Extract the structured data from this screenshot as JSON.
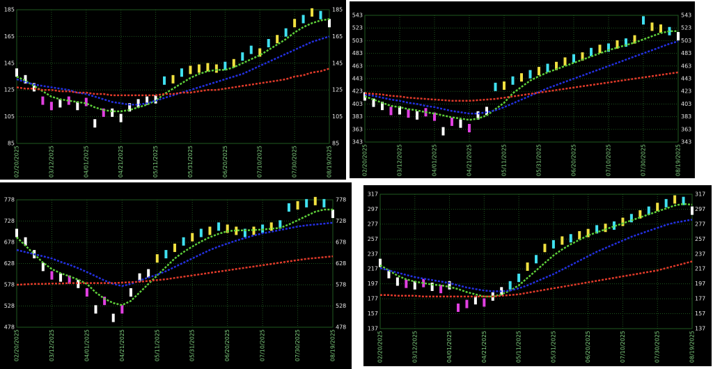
{
  "chart_data": [
    {
      "type": "price",
      "categories": [
        "02/20/2025",
        null,
        null,
        null,
        "03/12/2025",
        null,
        null,
        null,
        "04/01/2025",
        null,
        null,
        null,
        "04/21/2025",
        null,
        null,
        null,
        "05/11/2025",
        null,
        null,
        null,
        "05/31/2025",
        null,
        null,
        null,
        "06/20/2025",
        null,
        null,
        null,
        "07/10/2025",
        null,
        null,
        null,
        "07/30/2025",
        null,
        null,
        null,
        "08/19/2025"
      ],
      "ylim": [
        85,
        185
      ],
      "yticks": [
        85,
        105,
        125,
        145,
        165,
        185
      ],
      "grid": true,
      "series": [
        {
          "style": "bars",
          "color": "#ffffff",
          "values": [
            138,
            133,
            127,
            117,
            113,
            115,
            117,
            113,
            116,
            100,
            108,
            108,
            104,
            112,
            115,
            117,
            118,
            132,
            133,
            138,
            140,
            141,
            142,
            141,
            143,
            145,
            150,
            155,
            153,
            160,
            163,
            168,
            175,
            178,
            183,
            181,
            175
          ],
          "point_colors": [
            "#ffffff",
            "#ffffff",
            "#ffffff",
            "#e040e0",
            "#e040e0",
            "#ffffff",
            "#e040e0",
            "#ffffff",
            "#e040e0",
            "#ffffff",
            "#e040e0",
            "#ffffff",
            "#ffffff",
            "#ffffff",
            "#ffffff",
            "#ffffff",
            "#ffffff",
            "#40e0f0",
            "#f0e040",
            "#40e0f0",
            "#f0e040",
            "#f0e040",
            "#f0e040",
            "#f0e040",
            "#40e0f0",
            "#f0e040",
            "#40e0f0",
            "#40e0f0",
            "#f0e040",
            "#40e0f0",
            "#f0e040",
            "#40e0f0",
            "#f0e040",
            "#40e0f0",
            "#f0e040",
            "#40e0f0",
            "#ffffff"
          ]
        },
        {
          "style": "dotted",
          "color": "#5ed03a",
          "values": [
            135,
            132,
            128,
            124,
            120,
            118,
            117,
            116,
            115,
            112,
            110,
            109,
            109,
            110,
            112,
            114,
            117,
            122,
            126,
            130,
            134,
            137,
            139,
            140,
            140,
            142,
            145,
            148,
            151,
            155,
            159,
            163,
            168,
            172,
            175,
            177,
            178
          ]
        },
        {
          "style": "dotted",
          "color": "#2430e0",
          "values": [
            133,
            131,
            129,
            128,
            127,
            126,
            125,
            123,
            122,
            120,
            118,
            116,
            115,
            114,
            114,
            115,
            117,
            119,
            121,
            123,
            125,
            127,
            129,
            131,
            133,
            135,
            137,
            140,
            143,
            146,
            149,
            152,
            155,
            158,
            161,
            163,
            165
          ]
        },
        {
          "style": "dotted",
          "color": "#e03a2a",
          "values": [
            127,
            126,
            126,
            125,
            125,
            124,
            124,
            123,
            123,
            122,
            122,
            121,
            121,
            121,
            121,
            121,
            121,
            122,
            122,
            123,
            123,
            124,
            125,
            125,
            126,
            127,
            128,
            129,
            130,
            131,
            132,
            133,
            135,
            136,
            138,
            139,
            141
          ]
        }
      ]
    },
    {
      "type": "price",
      "categories": [
        "02/20/2025",
        null,
        null,
        null,
        "03/12/2025",
        null,
        null,
        null,
        "04/01/2025",
        null,
        null,
        null,
        "04/21/2025",
        null,
        null,
        null,
        "05/11/2025",
        null,
        null,
        null,
        "05/31/2025",
        null,
        null,
        null,
        "06/20/2025",
        null,
        null,
        null,
        "07/10/2025",
        null,
        null,
        null,
        "07/30/2025",
        null,
        null,
        null,
        "08/19/2025"
      ],
      "ylim": [
        343,
        543
      ],
      "yticks": [
        343,
        363,
        383,
        403,
        423,
        443,
        463,
        483,
        503,
        523,
        543
      ],
      "grid": true,
      "series": [
        {
          "style": "bars",
          "color": "#ffffff",
          "values": [
            415,
            405,
            400,
            392,
            393,
            388,
            385,
            390,
            383,
            360,
            375,
            372,
            365,
            385,
            392,
            430,
            432,
            440,
            445,
            450,
            455,
            460,
            463,
            470,
            475,
            478,
            485,
            490,
            492,
            497,
            500,
            505,
            535,
            525,
            522,
            518,
            510
          ],
          "point_colors": [
            "#ffffff",
            "#ffffff",
            "#ffffff",
            "#e040e0",
            "#ffffff",
            "#e040e0",
            "#ffffff",
            "#e040e0",
            "#e040e0",
            "#ffffff",
            "#e040e0",
            "#ffffff",
            "#e040e0",
            "#ffffff",
            "#ffffff",
            "#40e0f0",
            "#f0e040",
            "#40e0f0",
            "#f0e040",
            "#40e0f0",
            "#f0e040",
            "#40e0f0",
            "#f0e040",
            "#f0e040",
            "#40e0f0",
            "#f0e040",
            "#40e0f0",
            "#f0e040",
            "#40e0f0",
            "#f0e040",
            "#40e0f0",
            "#f0e040",
            "#40e0f0",
            "#f0e040",
            "#f0e040",
            "#40e0f0",
            "#ffffff"
          ]
        },
        {
          "style": "dotted",
          "color": "#5ed03a",
          "values": [
            415,
            410,
            405,
            400,
            398,
            395,
            393,
            390,
            388,
            385,
            382,
            380,
            378,
            380,
            385,
            395,
            405,
            420,
            430,
            440,
            447,
            453,
            458,
            463,
            468,
            473,
            478,
            483,
            488,
            492,
            496,
            500,
            505,
            510,
            515,
            518,
            518
          ]
        },
        {
          "style": "dotted",
          "color": "#2430e0",
          "values": [
            418,
            416,
            413,
            410,
            408,
            405,
            403,
            400,
            398,
            395,
            392,
            390,
            388,
            388,
            390,
            393,
            398,
            404,
            410,
            416,
            422,
            428,
            433,
            438,
            443,
            448,
            453,
            458,
            463,
            468,
            473,
            478,
            483,
            488,
            493,
            498,
            502
          ]
        },
        {
          "style": "dotted",
          "color": "#e03a2a",
          "values": [
            420,
            419,
            418,
            416,
            415,
            413,
            412,
            411,
            410,
            409,
            408,
            408,
            408,
            409,
            410,
            411,
            413,
            415,
            417,
            419,
            421,
            423,
            425,
            427,
            429,
            431,
            433,
            435,
            437,
            439,
            441,
            443,
            445,
            447,
            449,
            451,
            453
          ]
        }
      ]
    },
    {
      "type": "price",
      "categories": [
        "02/20/2025",
        null,
        null,
        null,
        "03/12/2025",
        null,
        null,
        null,
        "04/01/2025",
        null,
        null,
        null,
        "04/21/2025",
        null,
        null,
        null,
        "05/11/2025",
        null,
        null,
        null,
        "05/31/2025",
        null,
        null,
        null,
        "06/20/2025",
        null,
        null,
        null,
        "07/10/2025",
        null,
        null,
        null,
        "07/30/2025",
        null,
        null,
        null,
        "08/19/2025"
      ],
      "ylim": [
        478,
        778
      ],
      "yticks": [
        478,
        528,
        578,
        628,
        678,
        728,
        778
      ],
      "grid": true,
      "series": [
        {
          "style": "bars",
          "color": "#ffffff",
          "values": [
            700,
            680,
            650,
            620,
            600,
            595,
            590,
            580,
            560,
            520,
            540,
            500,
            520,
            560,
            595,
            605,
            640,
            650,
            665,
            680,
            690,
            700,
            705,
            715,
            710,
            705,
            700,
            705,
            710,
            715,
            720,
            760,
            765,
            770,
            775,
            770,
            745
          ],
          "point_colors": [
            "#ffffff",
            "#ffffff",
            "#ffffff",
            "#ffffff",
            "#e040e0",
            "#ffffff",
            "#e040e0",
            "#ffffff",
            "#e040e0",
            "#ffffff",
            "#e040e0",
            "#ffffff",
            "#e040e0",
            "#ffffff",
            "#ffffff",
            "#ffffff",
            "#f0e040",
            "#40e0f0",
            "#f0e040",
            "#40e0f0",
            "#f0e040",
            "#40e0f0",
            "#f0e040",
            "#40e0f0",
            "#f0e040",
            "#f0e040",
            "#40e0f0",
            "#f0e040",
            "#40e0f0",
            "#f0e040",
            "#40e0f0",
            "#40e0f0",
            "#f0e040",
            "#40e0f0",
            "#f0e040",
            "#40e0f0",
            "#ffffff"
          ]
        },
        {
          "style": "dotted",
          "color": "#5ed03a",
          "values": [
            690,
            670,
            650,
            630,
            615,
            605,
            598,
            590,
            580,
            560,
            545,
            535,
            530,
            540,
            560,
            580,
            600,
            620,
            640,
            655,
            668,
            680,
            690,
            698,
            704,
            706,
            706,
            707,
            708,
            710,
            712,
            720,
            730,
            740,
            750,
            755,
            755
          ]
        },
        {
          "style": "dotted",
          "color": "#2430e0",
          "values": [
            660,
            655,
            650,
            645,
            640,
            632,
            625,
            617,
            608,
            598,
            588,
            580,
            575,
            580,
            588,
            595,
            602,
            610,
            620,
            630,
            640,
            650,
            660,
            668,
            675,
            682,
            688,
            694,
            699,
            703,
            707,
            711,
            715,
            718,
            720,
            722,
            724
          ]
        },
        {
          "style": "dotted",
          "color": "#e03a2a",
          "values": [
            578,
            579,
            580,
            580,
            581,
            581,
            582,
            582,
            582,
            582,
            582,
            582,
            583,
            584,
            585,
            587,
            589,
            591,
            594,
            597,
            600,
            603,
            606,
            609,
            612,
            615,
            618,
            621,
            624,
            627,
            630,
            633,
            636,
            639,
            641,
            643,
            645
          ]
        }
      ]
    },
    {
      "type": "price",
      "categories": [
        "02/20/2025",
        null,
        null,
        null,
        "03/12/2025",
        null,
        null,
        null,
        "04/01/2025",
        null,
        null,
        null,
        "04/21/2025",
        null,
        null,
        null,
        "05/11/2025",
        null,
        null,
        null,
        "05/31/2025",
        null,
        null,
        null,
        "06/20/2025",
        null,
        null,
        null,
        "07/10/2025",
        null,
        null,
        null,
        "07/30/2025",
        null,
        null,
        null,
        "08/19/2025"
      ],
      "ylim": [
        137,
        317
      ],
      "yticks": [
        137,
        157,
        177,
        197,
        217,
        237,
        257,
        277,
        297,
        317
      ],
      "grid": true,
      "series": [
        {
          "style": "bars",
          "color": "#ffffff",
          "values": [
            225,
            210,
            200,
            197,
            195,
            198,
            193,
            190,
            195,
            165,
            170,
            175,
            172,
            180,
            187,
            195,
            205,
            220,
            230,
            245,
            250,
            255,
            258,
            262,
            265,
            270,
            272,
            275,
            280,
            285,
            290,
            295,
            300,
            305,
            310,
            308,
            295
          ],
          "point_colors": [
            "#ffffff",
            "#ffffff",
            "#ffffff",
            "#e040e0",
            "#ffffff",
            "#e040e0",
            "#ffffff",
            "#e040e0",
            "#ffffff",
            "#e040e0",
            "#e040e0",
            "#ffffff",
            "#e040e0",
            "#ffffff",
            "#ffffff",
            "#40e0f0",
            "#40e0f0",
            "#f0e040",
            "#40e0f0",
            "#f0e040",
            "#40e0f0",
            "#f0e040",
            "#40e0f0",
            "#f0e040",
            "#f0e040",
            "#40e0f0",
            "#f0e040",
            "#40e0f0",
            "#f0e040",
            "#40e0f0",
            "#f0e040",
            "#40e0f0",
            "#f0e040",
            "#40e0f0",
            "#f0e040",
            "#40e0f0",
            "#ffffff"
          ]
        },
        {
          "style": "dotted",
          "color": "#5ed03a",
          "values": [
            222,
            215,
            208,
            203,
            200,
            198,
            196,
            195,
            193,
            190,
            186,
            183,
            180,
            180,
            183,
            188,
            195,
            205,
            215,
            225,
            235,
            243,
            250,
            256,
            262,
            266,
            270,
            274,
            278,
            282,
            286,
            290,
            294,
            298,
            302,
            304,
            303
          ]
        },
        {
          "style": "dotted",
          "color": "#2430e0",
          "values": [
            218,
            215,
            212,
            209,
            206,
            204,
            202,
            200,
            198,
            195,
            192,
            190,
            188,
            187,
            187,
            188,
            191,
            195,
            200,
            205,
            210,
            216,
            222,
            228,
            234,
            240,
            245,
            250,
            255,
            260,
            264,
            268,
            272,
            276,
            279,
            281,
            283
          ]
        },
        {
          "style": "dotted",
          "color": "#e03a2a",
          "values": [
            182,
            182,
            181,
            181,
            181,
            180,
            180,
            180,
            180,
            180,
            180,
            180,
            180,
            180,
            181,
            182,
            183,
            185,
            187,
            189,
            191,
            193,
            195,
            197,
            199,
            201,
            203,
            205,
            207,
            209,
            211,
            213,
            215,
            218,
            221,
            224,
            227
          ]
        }
      ]
    }
  ]
}
